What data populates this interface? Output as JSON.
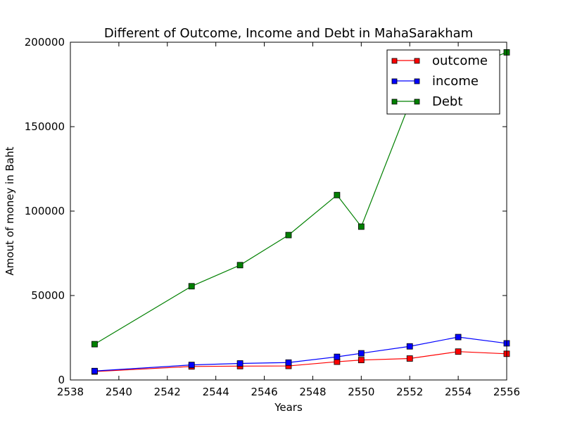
{
  "chart_data": {
    "type": "line",
    "title": "Different of Outcome, Income and Debt in MahaSarakham",
    "xlabel": "Years",
    "ylabel": "Amout of money in Baht",
    "xlim": [
      2538,
      2556
    ],
    "ylim": [
      0,
      200000
    ],
    "xticks": [
      2538,
      2540,
      2542,
      2544,
      2546,
      2548,
      2550,
      2552,
      2554,
      2556
    ],
    "yticks": [
      0,
      50000,
      100000,
      150000,
      200000
    ],
    "grid": false,
    "legend_position": "top-right",
    "x": [
      2539,
      2543,
      2545,
      2547,
      2549,
      2550,
      2552,
      2554,
      2556
    ],
    "series": [
      {
        "name": "outcome",
        "color": "#ff0000",
        "marker": "square",
        "values": [
          5000,
          8000,
          8200,
          8300,
          10800,
          11800,
          12700,
          16800,
          15500
        ]
      },
      {
        "name": "income",
        "color": "#0000ff",
        "marker": "square",
        "values": [
          5300,
          8900,
          9800,
          10300,
          13700,
          15800,
          19900,
          25400,
          21700
        ]
      },
      {
        "name": "Debt",
        "color": "#008000",
        "marker": "square",
        "values": [
          21200,
          55500,
          68000,
          85800,
          109500,
          90800,
          164000,
          183000,
          194000
        ]
      }
    ]
  }
}
